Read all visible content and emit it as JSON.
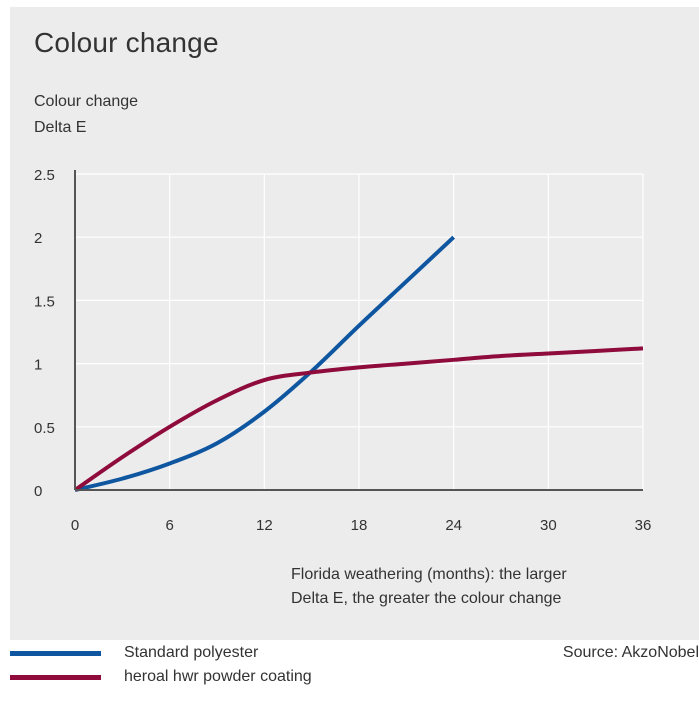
{
  "chart_data": {
    "type": "line",
    "title": "Colour change",
    "ylabel": [
      "Colour change",
      "Delta E"
    ],
    "xlabel": [
      "Florida weathering (months): the larger",
      "Delta E, the greater the colour change"
    ],
    "x_ticks": [
      0,
      6,
      12,
      18,
      24,
      30,
      36
    ],
    "y_ticks": [
      "0",
      "0.5",
      "1",
      "1.5",
      "2",
      "2.5"
    ],
    "xlim": [
      0,
      36
    ],
    "ylim": [
      0,
      2.5
    ],
    "grid": true,
    "legend_position": "bottom-left",
    "series": [
      {
        "name": "Standard polyester",
        "color": "#0f56a0",
        "x": [
          0,
          3,
          6,
          9,
          12,
          15,
          18,
          21,
          24
        ],
        "y": [
          0,
          0.09,
          0.21,
          0.37,
          0.62,
          0.94,
          1.3,
          1.65,
          2.0
        ]
      },
      {
        "name": "heroal hwr powder coating",
        "color": "#8e0b3c",
        "x": [
          0,
          3,
          6,
          9,
          12,
          15,
          18,
          21,
          24,
          27,
          30,
          33,
          36
        ],
        "y": [
          0,
          0.26,
          0.5,
          0.71,
          0.87,
          0.93,
          0.97,
          1.0,
          1.03,
          1.06,
          1.08,
          1.1,
          1.12
        ]
      }
    ]
  },
  "source": "Source: AkzoNobel",
  "colors": {
    "panel": "#ececec",
    "axis": "#555555",
    "grid": "#ffffff"
  }
}
